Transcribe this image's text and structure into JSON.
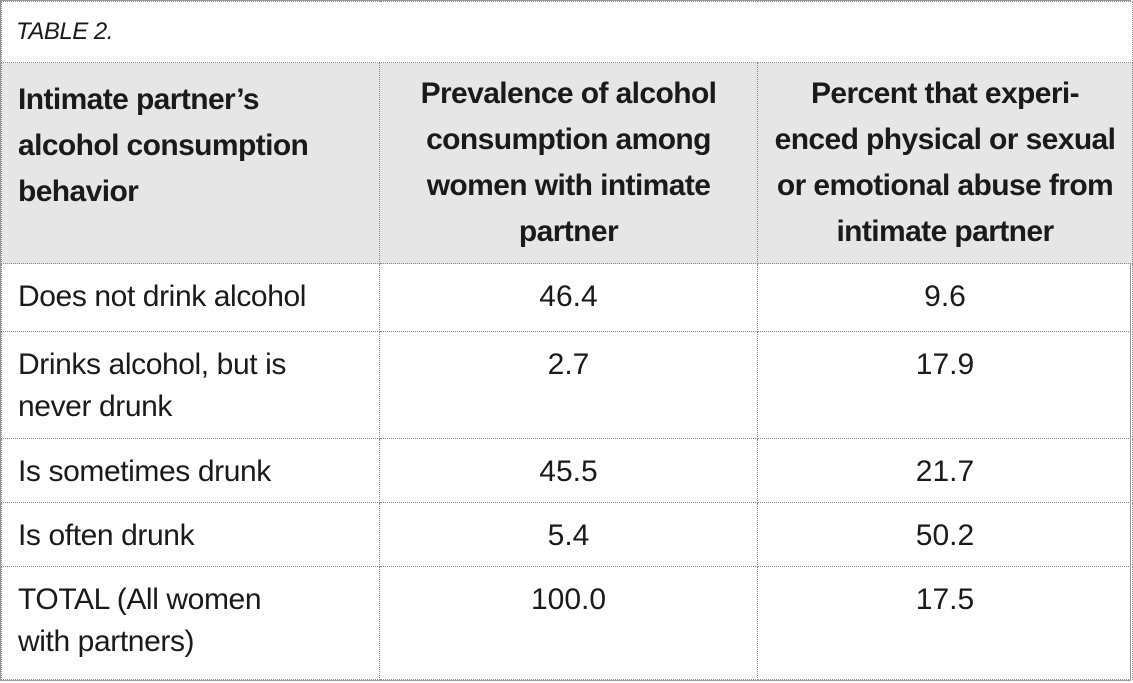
{
  "table": {
    "caption": "TABLE 2.",
    "headers": [
      "Intimate partner’s alcohol consumption behavior",
      "Prevalence of alcohol consumption among women with intimate partner",
      "Percent that experi- enced physical or sexual or emotional abuse from intimate partner"
    ],
    "header_lines": [
      [
        "Intimate partner’s",
        "alcohol consumption",
        "behavior"
      ],
      [
        "Prevalence of alcohol",
        "consumption among",
        "women with intimate",
        "partner"
      ],
      [
        "Percent that experi-",
        "enced physical or sexual",
        "or emotional abuse from",
        "intimate partner"
      ]
    ],
    "rows": [
      {
        "label_lines": [
          "Does not drink alcohol"
        ],
        "prevalence": "46.4",
        "abuse": "9.6"
      },
      {
        "label_lines": [
          "Drinks alcohol, but is",
          "never drunk"
        ],
        "prevalence": "2.7",
        "abuse": "17.9"
      },
      {
        "label_lines": [
          "Is sometimes drunk"
        ],
        "prevalence": "45.5",
        "abuse": "21.7"
      },
      {
        "label_lines": [
          "Is often drunk"
        ],
        "prevalence": "5.4",
        "abuse": "50.2"
      },
      {
        "label_lines": [
          "TOTAL (All women",
          "with partners)"
        ],
        "prevalence": "100.0",
        "abuse": "17.5"
      }
    ]
  }
}
